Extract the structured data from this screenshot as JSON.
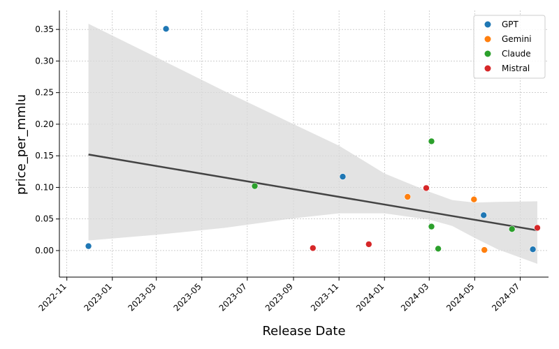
{
  "chart_data": {
    "type": "scatter",
    "title": "",
    "xlabel": "Release Date",
    "ylabel": "price_per_mmlu",
    "xlim": [
      "2022-10-22",
      "2024-08-08"
    ],
    "ylim": [
      -0.042,
      0.38
    ],
    "x_ticks": [
      "2022-11",
      "2023-01",
      "2023-03",
      "2023-05",
      "2023-07",
      "2023-09",
      "2023-11",
      "2024-01",
      "2024-03",
      "2024-05",
      "2024-07"
    ],
    "y_ticks": [
      "0.00",
      "0.05",
      "0.10",
      "0.15",
      "0.20",
      "0.25",
      "0.30",
      "0.35"
    ],
    "grid": true,
    "legend_position": "top-right",
    "series": [
      {
        "name": "GPT",
        "color": "#1f77b4",
        "points": [
          {
            "x": "2022-11-30",
            "y": 0.007
          },
          {
            "x": "2023-03-14",
            "y": 0.351
          },
          {
            "x": "2023-11-06",
            "y": 0.117
          },
          {
            "x": "2024-05-13",
            "y": 0.056
          },
          {
            "x": "2024-07-18",
            "y": 0.002
          }
        ]
      },
      {
        "name": "Gemini",
        "color": "#ff7f0e",
        "points": [
          {
            "x": "2024-02-01",
            "y": 0.085
          },
          {
            "x": "2024-04-30",
            "y": 0.081
          },
          {
            "x": "2024-05-14",
            "y": 0.001
          }
        ]
      },
      {
        "name": "Claude",
        "color": "#2ca02c",
        "points": [
          {
            "x": "2023-07-11",
            "y": 0.102
          },
          {
            "x": "2024-03-04",
            "y": 0.173
          },
          {
            "x": "2024-03-04",
            "y": 0.038
          },
          {
            "x": "2024-03-13",
            "y": 0.003
          },
          {
            "x": "2024-06-20",
            "y": 0.034
          }
        ]
      },
      {
        "name": "Mistral",
        "color": "#d62728",
        "points": [
          {
            "x": "2023-09-27",
            "y": 0.004
          },
          {
            "x": "2023-12-11",
            "y": 0.01
          },
          {
            "x": "2024-02-26",
            "y": 0.099
          },
          {
            "x": "2024-07-24",
            "y": 0.036
          }
        ]
      }
    ],
    "regression": {
      "color": "#444444",
      "x_start": "2022-11-30",
      "x_end": "2024-07-24",
      "y_start": 0.152,
      "y_end": 0.032,
      "ci_band": [
        {
          "x": "2022-11-30",
          "lower": 0.016,
          "upper": 0.359
        },
        {
          "x": "2023-03-01",
          "lower": 0.025,
          "upper": 0.306
        },
        {
          "x": "2023-06-01",
          "lower": 0.036,
          "upper": 0.252
        },
        {
          "x": "2023-09-01",
          "lower": 0.051,
          "upper": 0.2
        },
        {
          "x": "2023-11-01",
          "lower": 0.059,
          "upper": 0.166
        },
        {
          "x": "2024-01-01",
          "lower": 0.059,
          "upper": 0.122
        },
        {
          "x": "2024-03-01",
          "lower": 0.049,
          "upper": 0.093
        },
        {
          "x": "2024-04-01",
          "lower": 0.039,
          "upper": 0.08
        },
        {
          "x": "2024-05-01",
          "lower": 0.02,
          "upper": 0.076
        },
        {
          "x": "2024-06-01",
          "lower": 0.002,
          "upper": 0.077
        },
        {
          "x": "2024-07-24",
          "lower": -0.021,
          "upper": 0.078
        }
      ]
    }
  }
}
